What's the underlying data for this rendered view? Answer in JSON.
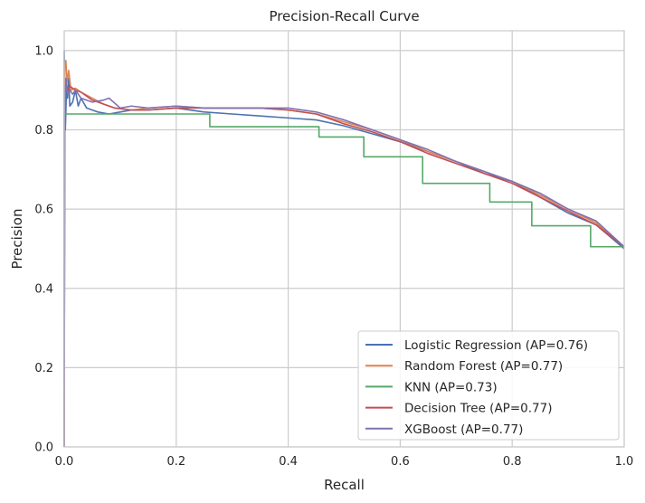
{
  "chart_data": {
    "type": "line",
    "title": "Precision-Recall Curve",
    "xlabel": "Recall",
    "ylabel": "Precision",
    "xlim": [
      0,
      1
    ],
    "ylim": [
      0,
      1.05
    ],
    "grid": true,
    "legend_position": "lower-right",
    "xticks": [
      0.0,
      0.2,
      0.4,
      0.6,
      0.8,
      1.0
    ],
    "yticks": [
      0.0,
      0.2,
      0.4,
      0.6,
      0.8,
      1.0
    ],
    "xtick_labels": [
      "0.0",
      "0.2",
      "0.4",
      "0.6",
      "0.8",
      "1.0"
    ],
    "ytick_labels": [
      "0.0",
      "0.2",
      "0.4",
      "0.6",
      "0.8",
      "1.0"
    ],
    "series": [
      {
        "name": "Logistic Regression (AP=0.76)",
        "color": "#4c72b0",
        "points": [
          [
            0,
            0
          ],
          [
            0.0,
            1.0
          ],
          [
            0.002,
            0.8
          ],
          [
            0.004,
            0.9
          ],
          [
            0.006,
            0.88
          ],
          [
            0.008,
            0.93
          ],
          [
            0.01,
            0.86
          ],
          [
            0.015,
            0.87
          ],
          [
            0.02,
            0.9
          ],
          [
            0.025,
            0.86
          ],
          [
            0.03,
            0.88
          ],
          [
            0.04,
            0.855
          ],
          [
            0.05,
            0.85
          ],
          [
            0.06,
            0.845
          ],
          [
            0.08,
            0.84
          ],
          [
            0.1,
            0.845
          ],
          [
            0.12,
            0.85
          ],
          [
            0.15,
            0.85
          ],
          [
            0.2,
            0.855
          ],
          [
            0.25,
            0.845
          ],
          [
            0.3,
            0.84
          ],
          [
            0.35,
            0.835
          ],
          [
            0.4,
            0.83
          ],
          [
            0.45,
            0.825
          ],
          [
            0.5,
            0.81
          ],
          [
            0.55,
            0.79
          ],
          [
            0.6,
            0.77
          ],
          [
            0.65,
            0.745
          ],
          [
            0.7,
            0.72
          ],
          [
            0.75,
            0.69
          ],
          [
            0.8,
            0.67
          ],
          [
            0.85,
            0.63
          ],
          [
            0.9,
            0.59
          ],
          [
            0.95,
            0.56
          ],
          [
            1.0,
            0.5
          ]
        ]
      },
      {
        "name": "Random Forest (AP=0.77)",
        "color": "#dd8452",
        "points": [
          [
            0,
            0
          ],
          [
            0.001,
            0.95
          ],
          [
            0.003,
            0.975
          ],
          [
            0.005,
            0.92
          ],
          [
            0.008,
            0.95
          ],
          [
            0.012,
            0.9
          ],
          [
            0.02,
            0.905
          ],
          [
            0.03,
            0.895
          ],
          [
            0.05,
            0.88
          ],
          [
            0.07,
            0.865
          ],
          [
            0.09,
            0.855
          ],
          [
            0.12,
            0.85
          ],
          [
            0.15,
            0.855
          ],
          [
            0.2,
            0.86
          ],
          [
            0.25,
            0.855
          ],
          [
            0.3,
            0.855
          ],
          [
            0.35,
            0.855
          ],
          [
            0.4,
            0.85
          ],
          [
            0.45,
            0.84
          ],
          [
            0.5,
            0.82
          ],
          [
            0.55,
            0.8
          ],
          [
            0.6,
            0.775
          ],
          [
            0.65,
            0.745
          ],
          [
            0.7,
            0.72
          ],
          [
            0.75,
            0.695
          ],
          [
            0.8,
            0.67
          ],
          [
            0.85,
            0.635
          ],
          [
            0.9,
            0.6
          ],
          [
            0.95,
            0.565
          ],
          [
            1.0,
            0.505
          ]
        ]
      },
      {
        "name": "KNN (AP=0.73)",
        "color": "#55a868",
        "points": [
          [
            0,
            0
          ],
          [
            0.0,
            0.84
          ],
          [
            0.26,
            0.84
          ],
          [
            0.26,
            0.808
          ],
          [
            0.455,
            0.808
          ],
          [
            0.455,
            0.782
          ],
          [
            0.535,
            0.782
          ],
          [
            0.535,
            0.732
          ],
          [
            0.64,
            0.732
          ],
          [
            0.64,
            0.665
          ],
          [
            0.76,
            0.665
          ],
          [
            0.76,
            0.618
          ],
          [
            0.835,
            0.618
          ],
          [
            0.835,
            0.558
          ],
          [
            0.94,
            0.558
          ],
          [
            0.94,
            0.505
          ],
          [
            1.0,
            0.505
          ]
        ]
      },
      {
        "name": "Decision Tree (AP=0.77)",
        "color": "#c44e52",
        "points": [
          [
            0,
            0
          ],
          [
            0.001,
            0.88
          ],
          [
            0.003,
            0.92
          ],
          [
            0.006,
            0.9
          ],
          [
            0.01,
            0.91
          ],
          [
            0.02,
            0.9
          ],
          [
            0.03,
            0.895
          ],
          [
            0.05,
            0.875
          ],
          [
            0.07,
            0.865
          ],
          [
            0.09,
            0.855
          ],
          [
            0.12,
            0.85
          ],
          [
            0.15,
            0.85
          ],
          [
            0.2,
            0.855
          ],
          [
            0.25,
            0.855
          ],
          [
            0.3,
            0.855
          ],
          [
            0.35,
            0.855
          ],
          [
            0.4,
            0.85
          ],
          [
            0.45,
            0.84
          ],
          [
            0.5,
            0.815
          ],
          [
            0.55,
            0.795
          ],
          [
            0.6,
            0.77
          ],
          [
            0.65,
            0.74
          ],
          [
            0.7,
            0.715
          ],
          [
            0.75,
            0.69
          ],
          [
            0.8,
            0.665
          ],
          [
            0.85,
            0.63
          ],
          [
            0.9,
            0.595
          ],
          [
            0.95,
            0.56
          ],
          [
            1.0,
            0.505
          ]
        ]
      },
      {
        "name": "XGBoost (AP=0.77)",
        "color": "#8172b3",
        "points": [
          [
            0,
            0
          ],
          [
            0.001,
            0.85
          ],
          [
            0.003,
            0.93
          ],
          [
            0.006,
            0.89
          ],
          [
            0.01,
            0.9
          ],
          [
            0.015,
            0.89
          ],
          [
            0.02,
            0.9
          ],
          [
            0.03,
            0.88
          ],
          [
            0.05,
            0.87
          ],
          [
            0.07,
            0.875
          ],
          [
            0.08,
            0.88
          ],
          [
            0.1,
            0.855
          ],
          [
            0.12,
            0.86
          ],
          [
            0.15,
            0.855
          ],
          [
            0.2,
            0.86
          ],
          [
            0.25,
            0.855
          ],
          [
            0.3,
            0.855
          ],
          [
            0.35,
            0.855
          ],
          [
            0.4,
            0.855
          ],
          [
            0.45,
            0.845
          ],
          [
            0.5,
            0.825
          ],
          [
            0.55,
            0.8
          ],
          [
            0.6,
            0.775
          ],
          [
            0.65,
            0.75
          ],
          [
            0.7,
            0.72
          ],
          [
            0.75,
            0.695
          ],
          [
            0.8,
            0.67
          ],
          [
            0.85,
            0.64
          ],
          [
            0.9,
            0.6
          ],
          [
            0.95,
            0.57
          ],
          [
            1.0,
            0.505
          ]
        ]
      }
    ]
  }
}
